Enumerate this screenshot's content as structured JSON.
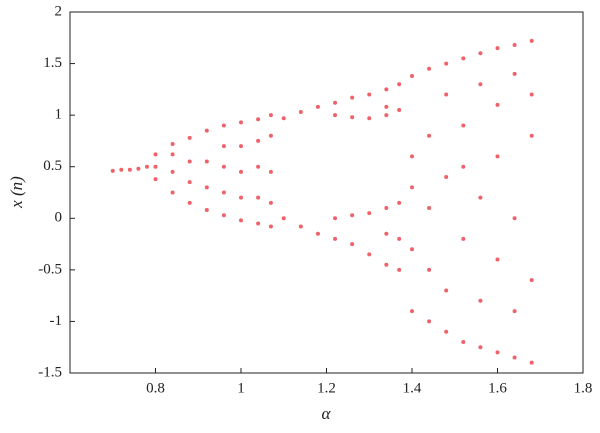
{
  "chart_data": {
    "type": "scatter",
    "x_label": "α",
    "y_label": "x (n)",
    "color": "#e8202a",
    "xlim": [
      0.6,
      1.8
    ],
    "ylim": [
      -1.5,
      2
    ],
    "xticks": [
      0.8,
      1,
      1.2,
      1.4,
      1.6,
      1.8
    ],
    "yticks": [
      -1.5,
      -1,
      -0.5,
      0,
      0.5,
      1,
      1.5,
      2
    ],
    "x": [
      0.7,
      0.72,
      0.74,
      0.76,
      0.78,
      0.8,
      0.8,
      0.8,
      0.84,
      0.84,
      0.84,
      0.84,
      0.88,
      0.88,
      0.88,
      0.88,
      0.92,
      0.92,
      0.92,
      0.92,
      0.96,
      0.96,
      0.96,
      0.96,
      0.96,
      1.0,
      1.0,
      1.0,
      1.0,
      1.0,
      1.04,
      1.04,
      1.04,
      1.04,
      1.04,
      1.07,
      1.07,
      1.07,
      1.07,
      1.07,
      1.1,
      1.1,
      1.14,
      1.14,
      1.18,
      1.18,
      1.22,
      1.22,
      1.22,
      1.22,
      1.26,
      1.26,
      1.26,
      1.26,
      1.3,
      1.3,
      1.3,
      1.3,
      1.34,
      1.34,
      1.34,
      1.34,
      1.34,
      1.34,
      1.37,
      1.37,
      1.37,
      1.37,
      1.37,
      1.4,
      1.4,
      1.4,
      1.4,
      1.4,
      1.44,
      1.44,
      1.44,
      1.44,
      1.44,
      1.48,
      1.48,
      1.48,
      1.48,
      1.48,
      1.52,
      1.52,
      1.52,
      1.52,
      1.52,
      1.56,
      1.56,
      1.56,
      1.56,
      1.56,
      1.6,
      1.6,
      1.6,
      1.6,
      1.6,
      1.64,
      1.64,
      1.64,
      1.64,
      1.64,
      1.68,
      1.68,
      1.68,
      1.68,
      1.68
    ],
    "values": [
      0.46,
      0.47,
      0.47,
      0.48,
      0.5,
      0.38,
      0.5,
      0.62,
      0.25,
      0.45,
      0.62,
      0.72,
      0.15,
      0.35,
      0.55,
      0.78,
      0.08,
      0.3,
      0.55,
      0.85,
      0.03,
      0.25,
      0.5,
      0.7,
      0.9,
      -0.02,
      0.2,
      0.45,
      0.7,
      0.93,
      -0.05,
      0.2,
      0.5,
      0.75,
      0.96,
      -0.08,
      0.15,
      0.45,
      0.8,
      1.0,
      0.97,
      0.0,
      1.03,
      -0.08,
      1.08,
      -0.15,
      1.12,
      1.0,
      -0.2,
      0.0,
      1.17,
      0.98,
      -0.25,
      0.03,
      1.2,
      0.97,
      -0.35,
      0.05,
      1.25,
      1.0,
      1.08,
      -0.45,
      0.1,
      -0.15,
      1.3,
      1.05,
      -0.5,
      0.15,
      -0.2,
      1.38,
      -0.9,
      0.6,
      0.3,
      -0.3,
      1.45,
      -1.0,
      0.8,
      -0.5,
      0.1,
      1.5,
      -1.1,
      1.2,
      -0.7,
      0.4,
      1.55,
      -1.2,
      0.9,
      -0.2,
      0.5,
      1.6,
      -1.25,
      1.3,
      -0.8,
      0.2,
      1.65,
      -1.3,
      1.1,
      -0.4,
      0.6,
      1.68,
      -1.35,
      1.4,
      -0.9,
      0.0,
      1.72,
      -1.4,
      0.8,
      -0.6,
      1.2
    ]
  }
}
